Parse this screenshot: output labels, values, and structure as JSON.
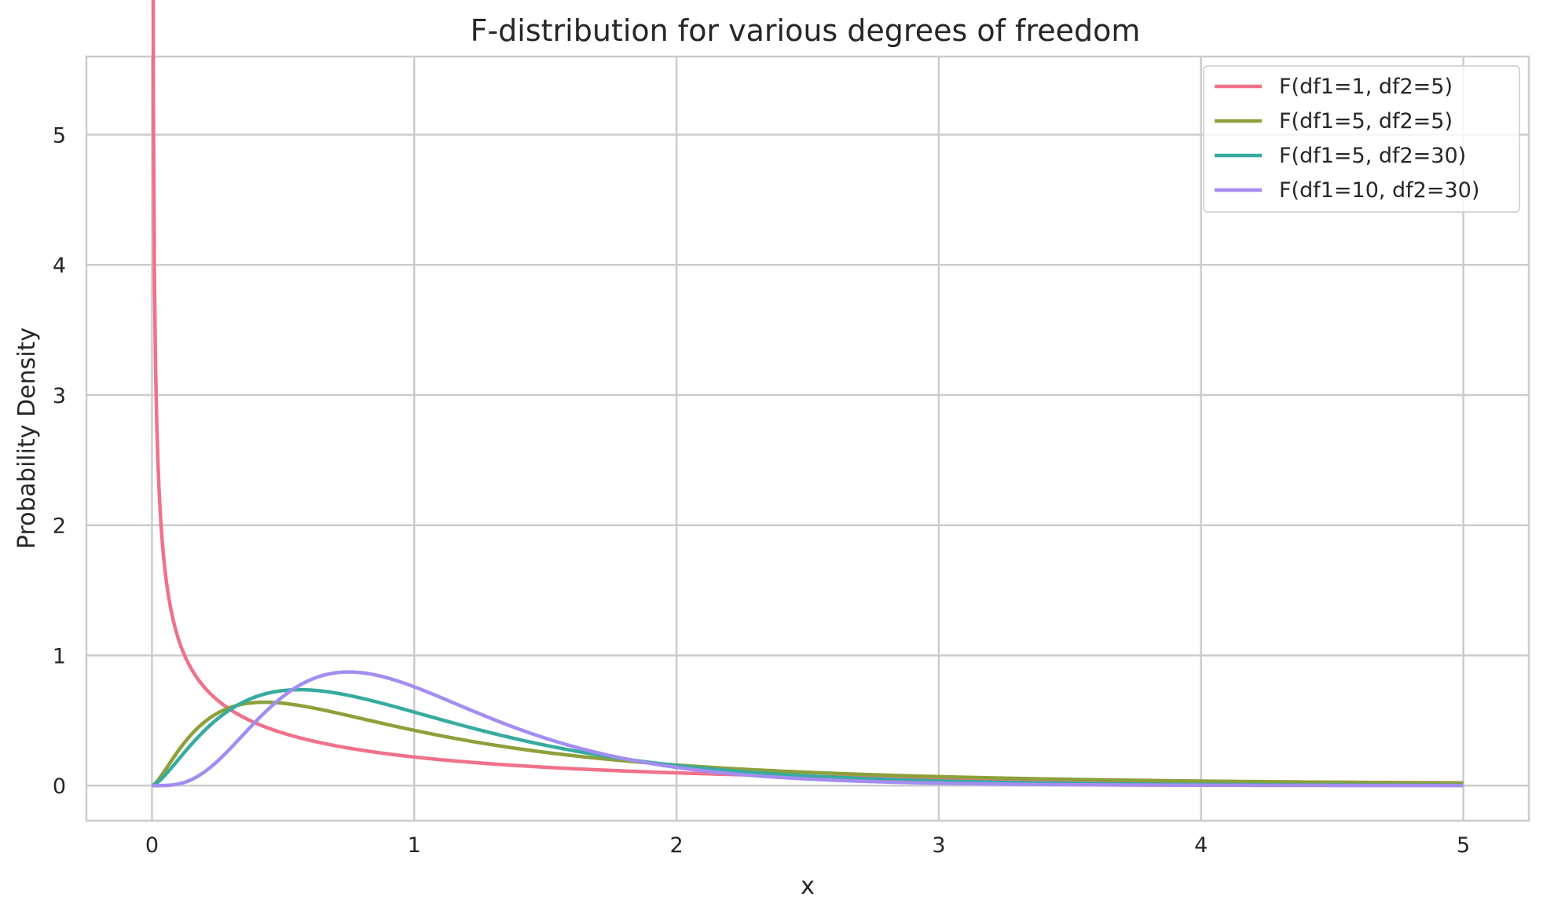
{
  "chart_data": {
    "type": "line",
    "title": "F-distribution for various degrees of freedom",
    "xlabel": "x",
    "ylabel": "Probability Density",
    "xlim": [
      -0.25,
      5.25
    ],
    "ylim": [
      -0.27,
      5.6
    ],
    "xticks": [
      0,
      1,
      2,
      3,
      4,
      5
    ],
    "yticks": [
      0,
      1,
      2,
      3,
      4,
      5
    ],
    "grid": true,
    "legend_position": "top-right",
    "series": [
      {
        "name": "F(df1=1, df2=5)",
        "color": "#f0718a",
        "df1": 1,
        "df2": 5,
        "x_range": [
          0.001,
          5
        ]
      },
      {
        "name": "F(df1=5, df2=5)",
        "color": "#8da03a",
        "df1": 5,
        "df2": 5,
        "x_range": [
          0,
          5
        ]
      },
      {
        "name": "F(df1=5, df2=30)",
        "color": "#37ab9f",
        "df1": 5,
        "df2": 30,
        "x_range": [
          0,
          5
        ]
      },
      {
        "name": "F(df1=10, df2=30)",
        "color": "#a38df0",
        "df1": 10,
        "df2": 30,
        "x_range": [
          0,
          5
        ]
      }
    ]
  }
}
